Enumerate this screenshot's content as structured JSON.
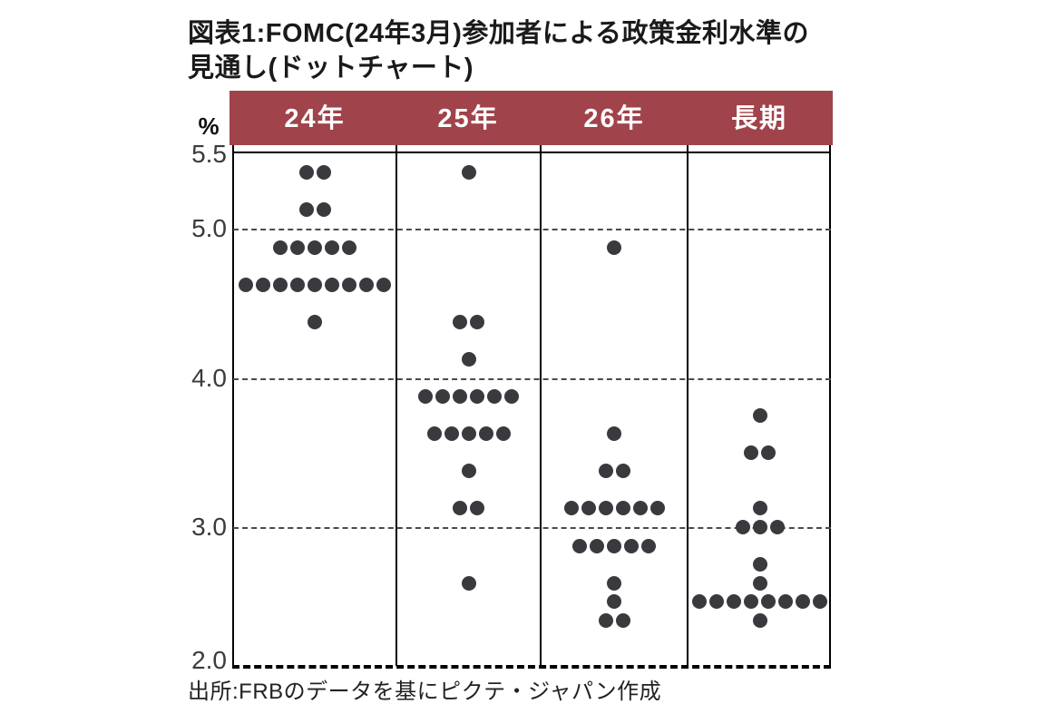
{
  "header": {
    "title_line1": "図表1:FOMC(24年3月)参加者による政策金利水準の",
    "title_line2": "見通し(ドットチャート)"
  },
  "yaxis": {
    "unit_label": "%",
    "ticks": [
      {
        "label": "5.5",
        "value": 5.5
      },
      {
        "label": "5.0",
        "value": 5.0
      },
      {
        "label": "4.0",
        "value": 4.0
      },
      {
        "label": "3.0",
        "value": 3.0
      },
      {
        "label": "2.0",
        "value": 2.0
      }
    ]
  },
  "footer": {
    "source": "出所:FRBのデータを基にピクテ・ジャパン作成"
  },
  "colors": {
    "header_bg": "#A0434A",
    "header_text": "#FFFFFF",
    "dot": "#3A3A3E",
    "frame": "#000000"
  },
  "chart_data": {
    "type": "scatter",
    "variant": "dot-plot",
    "title": "図表1:FOMC(24年3月)参加者による政策金利水準の見通し(ドットチャート)",
    "ylabel": "%",
    "ylim": [
      2.0,
      5.5
    ],
    "yticks": [
      5.5,
      5.0,
      4.0,
      3.0,
      2.0
    ],
    "gridline_values": [
      5.0,
      4.0,
      3.0
    ],
    "grid_style": "dashed",
    "legend": "none",
    "categories": [
      "24年",
      "25年",
      "26年",
      "長期"
    ],
    "series": [
      {
        "name": "24年",
        "dots": [
          {
            "rate": 5.375,
            "count": 2
          },
          {
            "rate": 5.125,
            "count": 2
          },
          {
            "rate": 4.875,
            "count": 5
          },
          {
            "rate": 4.625,
            "count": 9
          },
          {
            "rate": 4.375,
            "count": 1
          }
        ]
      },
      {
        "name": "25年",
        "dots": [
          {
            "rate": 5.375,
            "count": 1
          },
          {
            "rate": 4.375,
            "count": 2
          },
          {
            "rate": 4.125,
            "count": 1
          },
          {
            "rate": 3.875,
            "count": 6
          },
          {
            "rate": 3.625,
            "count": 5
          },
          {
            "rate": 3.375,
            "count": 1
          },
          {
            "rate": 3.125,
            "count": 2
          },
          {
            "rate": 2.625,
            "count": 1
          }
        ]
      },
      {
        "name": "26年",
        "dots": [
          {
            "rate": 4.875,
            "count": 1
          },
          {
            "rate": 3.625,
            "count": 1
          },
          {
            "rate": 3.375,
            "count": 2
          },
          {
            "rate": 3.125,
            "count": 6
          },
          {
            "rate": 2.875,
            "count": 5
          },
          {
            "rate": 2.625,
            "count": 1
          },
          {
            "rate": 2.5,
            "count": 1
          },
          {
            "rate": 2.375,
            "count": 2
          }
        ]
      },
      {
        "name": "長期",
        "dots": [
          {
            "rate": 3.75,
            "count": 1
          },
          {
            "rate": 3.5,
            "count": 2
          },
          {
            "rate": 3.125,
            "count": 1
          },
          {
            "rate": 3.0,
            "count": 3
          },
          {
            "rate": 2.75,
            "count": 1
          },
          {
            "rate": 2.625,
            "count": 1
          },
          {
            "rate": 2.5,
            "count": 8
          },
          {
            "rate": 2.375,
            "count": 1
          }
        ]
      }
    ]
  }
}
